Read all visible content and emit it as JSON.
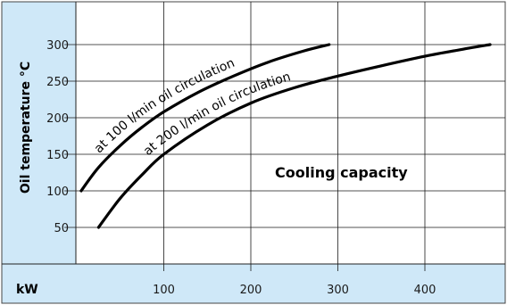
{
  "colors": {
    "panel": "#cfe8f8",
    "grid": "#1a1a1a",
    "curve": "#000000"
  },
  "chart_data": {
    "type": "line",
    "ylabel": "Oil temperature °C",
    "xlabel": "kW",
    "annotation": "Cooling capacity",
    "xlim": [
      0,
      500
    ],
    "ylim": [
      0,
      345
    ],
    "x_ticks": [
      100,
      200,
      300,
      400
    ],
    "y_ticks": [
      50,
      100,
      150,
      200,
      250,
      300
    ],
    "grid": "vertical and horizontal",
    "series": [
      {
        "name": "at 100 l/min oil circulation",
        "x": [
          5,
          25,
          50,
          75,
          100,
          140,
          180,
          220,
          260,
          290
        ],
        "y": [
          100,
          132,
          162,
          187,
          208,
          235,
          257,
          276,
          291,
          300
        ]
      },
      {
        "name": "at 200 l/min oil circulation",
        "x": [
          25,
          50,
          75,
          100,
          150,
          200,
          250,
          300,
          350,
          400,
          450,
          475
        ],
        "y": [
          50,
          90,
          122,
          150,
          190,
          220,
          241,
          257,
          271,
          284,
          295,
          300
        ]
      }
    ]
  }
}
